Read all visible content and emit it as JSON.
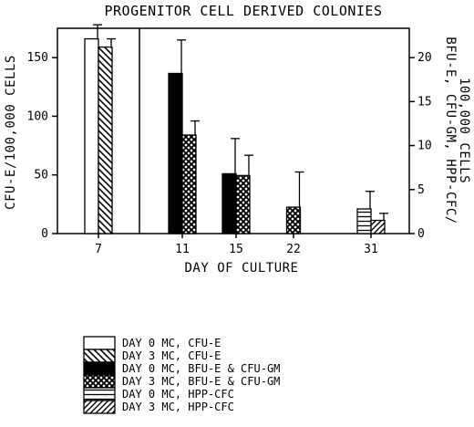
{
  "chart_data": {
    "type": "bar",
    "title": "PROGENITOR CELL DERIVED COLONIES",
    "xlabel": "DAY OF CULTURE",
    "ylabel_left": "CFU-E/100,000 CELLS",
    "ylabel_right_line1": "BFU-E, CFU-GM, HPP-CFC/",
    "ylabel_right_line2": "100,000 CELLS",
    "left_axis": {
      "min": 0,
      "max": 175,
      "ticks": [
        0,
        50,
        100,
        150
      ]
    },
    "right_axis": {
      "min": 0,
      "max": 23.33,
      "ticks": [
        0,
        5,
        10,
        15,
        20
      ]
    },
    "categories": [
      "7",
      "11",
      "15",
      "22",
      "31"
    ],
    "series": [
      {
        "name": "DAY 0 MC, CFU-E",
        "axis": "left",
        "pattern": "white",
        "values": [
          166,
          null,
          null,
          null,
          null
        ],
        "errors": [
          12,
          null,
          null,
          null,
          null
        ]
      },
      {
        "name": "DAY 3 MC, CFU-E",
        "axis": "left",
        "pattern": "diag-back",
        "values": [
          159,
          null,
          null,
          null,
          null
        ],
        "errors": [
          7,
          null,
          null,
          null,
          null
        ]
      },
      {
        "name": "DAY 0 MC, BFU-E & CFU-GM",
        "axis": "right",
        "pattern": "black",
        "values": [
          null,
          18.2,
          6.8,
          null,
          null
        ],
        "errors": [
          null,
          3.8,
          4.0,
          null,
          null
        ]
      },
      {
        "name": "DAY 3 MC, BFU-E & CFU-GM",
        "axis": "right",
        "pattern": "crosshatch",
        "values": [
          null,
          11.2,
          6.6,
          3.0,
          null
        ],
        "errors": [
          null,
          1.6,
          2.3,
          4.0,
          null
        ]
      },
      {
        "name": "DAY 0 MC, HPP-CFC",
        "axis": "right",
        "pattern": "horizontal",
        "values": [
          null,
          null,
          null,
          null,
          2.8
        ],
        "errors": [
          null,
          null,
          null,
          null,
          2.0
        ]
      },
      {
        "name": "DAY 3 MC, HPP-CFC",
        "axis": "right",
        "pattern": "diag-fwd",
        "values": [
          null,
          null,
          null,
          null,
          1.5
        ],
        "errors": [
          null,
          null,
          null,
          null,
          0.8
        ]
      }
    ]
  }
}
